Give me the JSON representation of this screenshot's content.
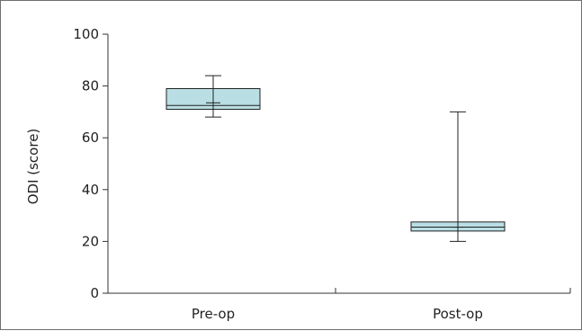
{
  "chart_data": {
    "type": "box",
    "title": "",
    "xlabel": "",
    "ylabel": "ODI (score)",
    "ylim": [
      0,
      100
    ],
    "yticks": [
      0,
      20,
      40,
      60,
      80,
      100
    ],
    "categories": [
      "Pre-op",
      "Post-op"
    ],
    "boxes": [
      {
        "category": "Pre-op",
        "min": 68,
        "q1": 71,
        "median": 72.5,
        "mean": 73.5,
        "q3": 79,
        "max": 84
      },
      {
        "category": "Post-op",
        "min": 20,
        "q1": 24,
        "median": 25.5,
        "mean": 25.5,
        "q3": 27.5,
        "max": 70
      }
    ],
    "box_fill": "#b9dee4",
    "box_stroke": "#222222",
    "grid": false
  }
}
